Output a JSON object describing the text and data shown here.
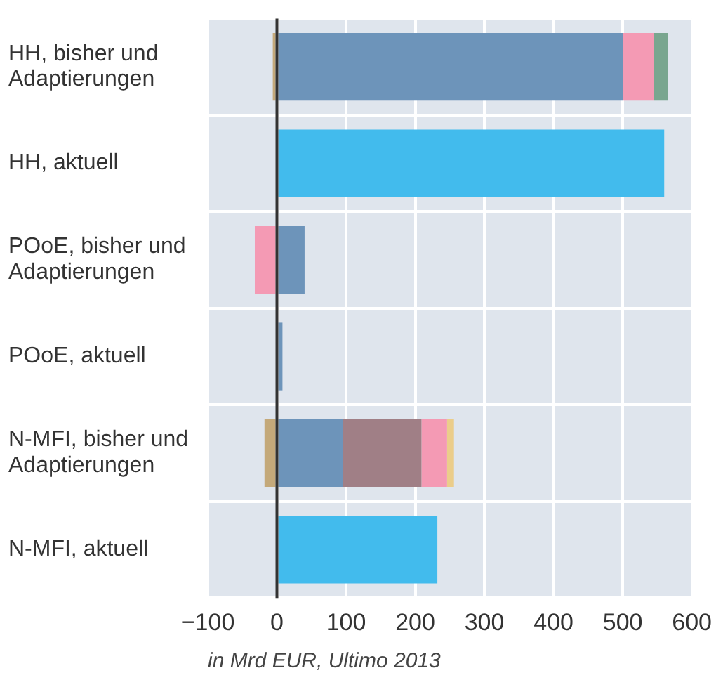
{
  "chart_data": {
    "type": "bar",
    "orientation": "horizontal",
    "stacked": true,
    "xlabel": "in Mrd EUR, Ultimo 2013",
    "categories": [
      "HH, bisher und Adaptierungen",
      "HH, aktuell",
      "POoE, bisher und Adaptierungen",
      "POoE, aktuell",
      "N-MFI, bisher und Adaptierungen",
      "N-MFI, aktuell"
    ],
    "series": [
      {
        "color": "#6d94ba",
        "values": [
          500,
          null,
          40,
          8,
          95,
          null
        ]
      },
      {
        "color": "#a07f86",
        "values": [
          null,
          null,
          null,
          null,
          114,
          null
        ]
      },
      {
        "color": "#f49ab4",
        "values": [
          45,
          null,
          -32,
          null,
          37,
          null
        ]
      },
      {
        "color": "#79a68f",
        "values": [
          20,
          null,
          null,
          null,
          null,
          null
        ]
      },
      {
        "color": "#ebcd8a",
        "values": [
          null,
          null,
          null,
          null,
          10,
          null
        ]
      },
      {
        "color": "#c4a97a",
        "values": [
          -6,
          null,
          null,
          null,
          -18,
          null
        ]
      },
      {
        "color": "#42bbed",
        "values": [
          null,
          560,
          null,
          null,
          null,
          232
        ]
      }
    ],
    "xlim": [
      -100,
      600
    ],
    "xticks": [
      {
        "value": -100,
        "label": "−100"
      },
      0,
      100,
      200,
      300,
      400,
      500,
      600
    ],
    "grid": true,
    "legend": false,
    "ref_lines": [
      {
        "axis": "x",
        "value": 0,
        "color": "#333333"
      }
    ]
  }
}
